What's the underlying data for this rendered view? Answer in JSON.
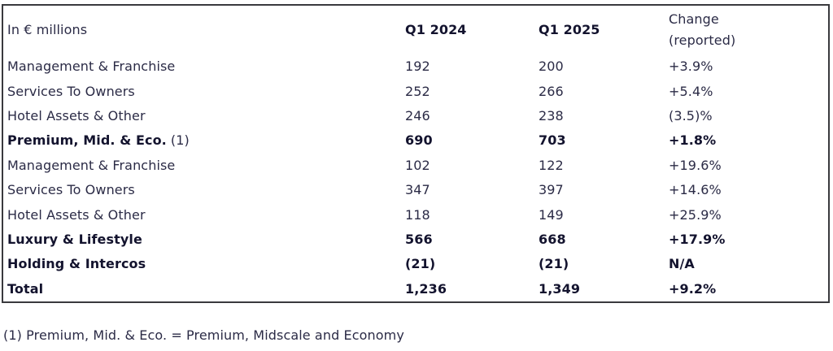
{
  "colors": {
    "text": "#2B2B46",
    "text-bold": "#13132E",
    "border": "#3A3A3E",
    "bg": "#FFFFFF"
  },
  "table": {
    "header": {
      "unit_label": "In € millions",
      "q1_2024": "Q1 2024",
      "q1_2025": "Q1 2025",
      "change_line1": "Change",
      "change_line2": "(reported)"
    },
    "rows": [
      {
        "label": "Management & Franchise",
        "suffix": "",
        "q1_2024": "192",
        "q1_2025": "200",
        "change": "+3.9%",
        "bold": false
      },
      {
        "label": "Services To Owners",
        "suffix": "",
        "q1_2024": "252",
        "q1_2025": "266",
        "change": "+5.4%",
        "bold": false
      },
      {
        "label": "Hotel Assets & Other",
        "suffix": "",
        "q1_2024": "246",
        "q1_2025": "238",
        "change": "(3.5)%",
        "bold": false
      },
      {
        "label": "Premium, Mid. & Eco.",
        "suffix": "(1)",
        "q1_2024": "690",
        "q1_2025": "703",
        "change": "+1.8%",
        "bold": true
      },
      {
        "label": "Management & Franchise",
        "suffix": "",
        "q1_2024": "102",
        "q1_2025": "122",
        "change": "+19.6%",
        "bold": false
      },
      {
        "label": "Services To Owners",
        "suffix": "",
        "q1_2024": "347",
        "q1_2025": "397",
        "change": "+14.6%",
        "bold": false
      },
      {
        "label": "Hotel Assets & Other",
        "suffix": "",
        "q1_2024": "118",
        "q1_2025": "149",
        "change": "+25.9%",
        "bold": false
      },
      {
        "label": "Luxury & Lifestyle",
        "suffix": "",
        "q1_2024": "566",
        "q1_2025": "668",
        "change": "+17.9%",
        "bold": true
      },
      {
        "label": "Holding & Intercos",
        "suffix": "",
        "q1_2024": "(21)",
        "q1_2025": "(21)",
        "change": "N/A",
        "bold": true
      },
      {
        "label": "Total",
        "suffix": "",
        "q1_2024": "1,236",
        "q1_2025": "1,349",
        "change": "+9.2%",
        "bold": true
      }
    ]
  },
  "footnote": "(1) Premium, Mid. & Eco. = Premium, Midscale and Economy"
}
